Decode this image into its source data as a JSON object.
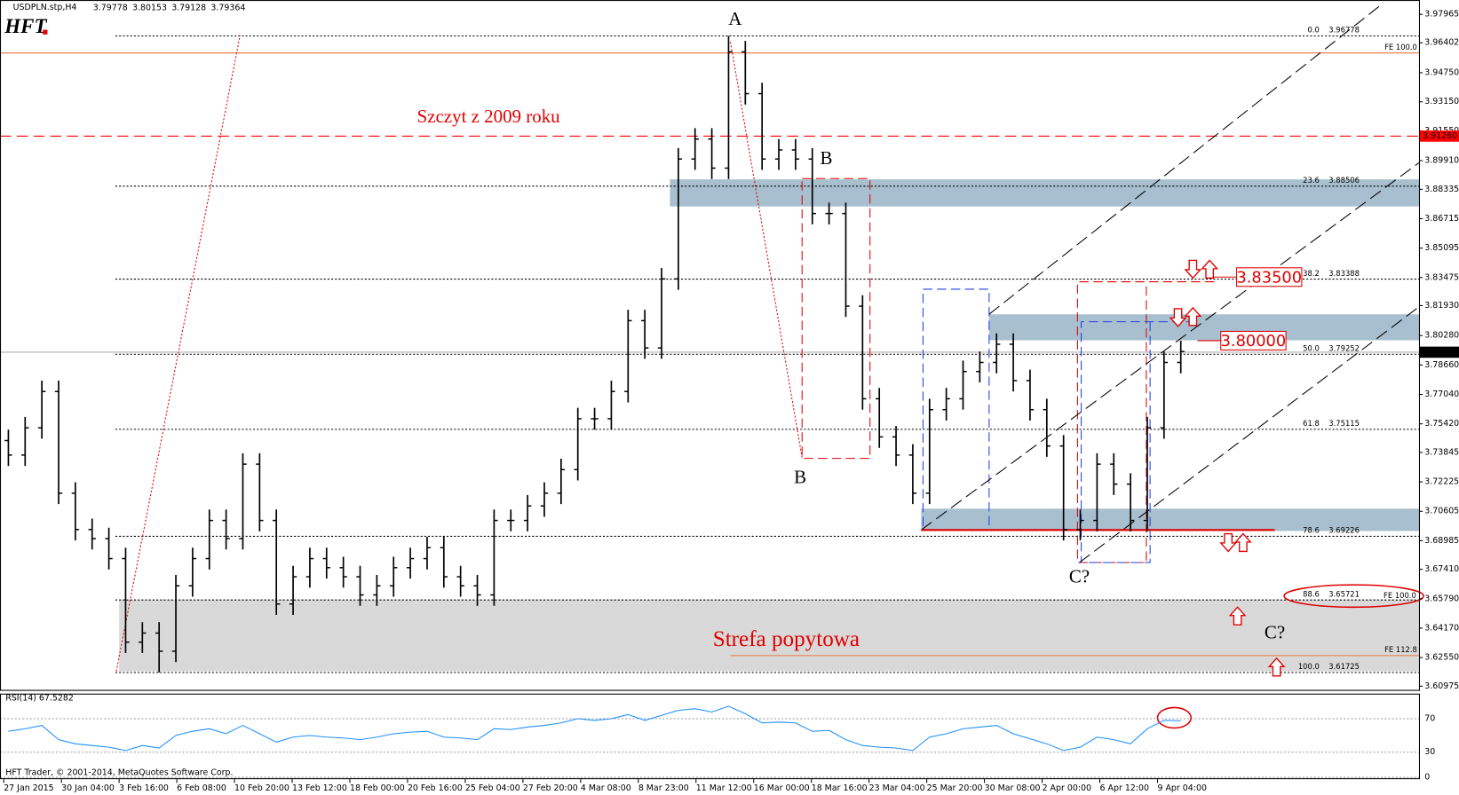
{
  "chart_data": [
    {
      "type": "ohlc",
      "title": "USDPLN.stp,H4",
      "quote": [
        3.79778,
        3.80153,
        3.79128,
        3.79364
      ],
      "logo": "HFT",
      "footer": "HFT Trader, © 2001-2014, MetaQuotes Software Corp.",
      "color": "#000000",
      "ylim": [
        3.6077,
        3.986
      ],
      "yticks": [
        3.97965,
        3.96402,
        {
          "value": 3.9475,
          "label": "3.94750"
        },
        {
          "value": 3.9315,
          "label": "3.93150"
        },
        {
          "value": 3.9155,
          "label": "3.91550"
        },
        {
          "value": 3.8991,
          "label": "3.89910"
        },
        3.88335,
        3.86715,
        3.85095,
        3.83475,
        {
          "value": 3.8193,
          "label": "3.81930"
        },
        {
          "value": 3.8028,
          "label": "3.80280"
        },
        {
          "value": 3.7866,
          "label": "3.78660"
        },
        {
          "value": 3.7704,
          "label": "3.77040"
        },
        {
          "value": 3.7542,
          "label": "3.75420"
        },
        3.73845,
        3.72225,
        3.70605,
        3.68985,
        {
          "value": 3.6741,
          "label": "3.67410"
        },
        {
          "value": 3.6579,
          "label": "3.65790"
        },
        {
          "value": 3.6417,
          "label": "3.64170"
        },
        {
          "value": 3.6255,
          "label": "3.62550"
        },
        3.60975
      ],
      "x_tick_labels": [
        "27 Jan 2015",
        "30 Jan 04:00",
        "3 Feb 16:00",
        "6 Feb 08:00",
        "10 Feb 20:00",
        "13 Feb 12:00",
        "18 Feb 00:00",
        "20 Feb 16:00",
        "25 Feb 04:00",
        "27 Feb 20:00",
        "4 Mar 08:00",
        "8 Mar 23:00",
        "11 Mar 12:00",
        "16 Mar 00:00",
        "18 Mar 16:00",
        "23 Mar 04:00",
        "25 Mar 20:00",
        "30 Mar 08:00",
        "2 Apr 00:00",
        "6 Apr 12:00",
        "9 Apr 04:00"
      ],
      "open": [
        3.745,
        3.737,
        3.752,
        3.772,
        3.716,
        3.696,
        3.691,
        3.68,
        3.634,
        3.639,
        3.629,
        3.665,
        3.68,
        3.701,
        3.691,
        3.732,
        3.701,
        3.655,
        3.67,
        3.68,
        3.675,
        3.67,
        3.66,
        3.665,
        3.675,
        3.68,
        3.686,
        3.67,
        3.665,
        3.66,
        3.701,
        3.701,
        3.709,
        3.716,
        3.729,
        3.757,
        3.757,
        3.772,
        3.811,
        3.796,
        3.834,
        3.9,
        3.911,
        3.895,
        3.959,
        3.936,
        3.9,
        3.905,
        3.9,
        3.87,
        3.87,
        3.819,
        3.768,
        3.747,
        3.737,
        3.716,
        3.762,
        3.768,
        3.783,
        3.788,
        3.798,
        3.778,
        3.762,
        3.742,
        3.696,
        3.701,
        3.732,
        3.721,
        3.701,
        3.752,
        3.788
      ],
      "high": [
        3.751,
        3.758,
        3.778,
        3.778,
        3.722,
        3.702,
        3.697,
        3.686,
        3.645,
        3.645,
        3.671,
        3.686,
        3.707,
        3.707,
        3.738,
        3.738,
        3.707,
        3.676,
        3.686,
        3.686,
        3.681,
        3.676,
        3.671,
        3.681,
        3.686,
        3.692,
        3.692,
        3.676,
        3.671,
        3.707,
        3.707,
        3.715,
        3.722,
        3.735,
        3.763,
        3.763,
        3.778,
        3.817,
        3.817,
        3.84,
        3.906,
        3.917,
        3.917,
        3.9678,
        3.965,
        3.942,
        3.911,
        3.911,
        3.906,
        3.876,
        3.876,
        3.825,
        3.774,
        3.753,
        3.743,
        3.768,
        3.774,
        3.789,
        3.794,
        3.804,
        3.804,
        3.784,
        3.768,
        3.748,
        3.707,
        3.738,
        3.738,
        3.727,
        3.758,
        3.794,
        3.8
      ],
      "low": [
        3.731,
        3.731,
        3.746,
        3.71,
        3.69,
        3.685,
        3.674,
        3.628,
        3.628,
        3.6173,
        3.623,
        3.659,
        3.674,
        3.685,
        3.685,
        3.695,
        3.649,
        3.649,
        3.664,
        3.669,
        3.664,
        3.654,
        3.654,
        3.659,
        3.669,
        3.674,
        3.664,
        3.659,
        3.654,
        3.654,
        3.695,
        3.695,
        3.703,
        3.71,
        3.723,
        3.751,
        3.751,
        3.766,
        3.79,
        3.79,
        3.828,
        3.894,
        3.889,
        3.889,
        3.93,
        3.894,
        3.894,
        3.894,
        3.864,
        3.864,
        3.813,
        3.762,
        3.741,
        3.731,
        3.71,
        3.71,
        3.756,
        3.762,
        3.777,
        3.782,
        3.772,
        3.756,
        3.736,
        3.69,
        3.69,
        3.695,
        3.715,
        3.695,
        3.695,
        3.746,
        3.782
      ],
      "close": [
        3.737,
        3.752,
        3.772,
        3.716,
        3.696,
        3.691,
        3.68,
        3.634,
        3.639,
        3.629,
        3.665,
        3.68,
        3.701,
        3.691,
        3.732,
        3.701,
        3.655,
        3.67,
        3.68,
        3.675,
        3.67,
        3.66,
        3.665,
        3.675,
        3.68,
        3.686,
        3.67,
        3.665,
        3.66,
        3.701,
        3.701,
        3.709,
        3.716,
        3.729,
        3.757,
        3.757,
        3.772,
        3.811,
        3.796,
        3.834,
        3.9,
        3.911,
        3.895,
        3.959,
        3.936,
        3.9,
        3.905,
        3.9,
        3.87,
        3.87,
        3.819,
        3.768,
        3.747,
        3.737,
        3.716,
        3.762,
        3.768,
        3.783,
        3.788,
        3.798,
        3.778,
        3.762,
        3.742,
        3.696,
        3.701,
        3.732,
        3.721,
        3.701,
        3.752,
        3.788,
        3.794
      ],
      "fib_levels": [
        {
          "level": "0.0",
          "value": 3.96778
        },
        {
          "level": "23.6",
          "value": 3.88506
        },
        {
          "level": "38.2",
          "value": 3.83388
        },
        {
          "level": "50.0",
          "value": 3.79252
        },
        {
          "level": "61.8",
          "value": 3.75115
        },
        {
          "level": "78.6",
          "value": 3.69226
        },
        {
          "level": "88.6",
          "value": 3.65721
        },
        {
          "level": "100.0",
          "value": 3.61725
        }
      ],
      "fe_lines": [
        {
          "label": "FE 100.0",
          "value": 3.9584,
          "color": "#e8773a"
        },
        {
          "label": "FE 112.8",
          "value": 3.6266,
          "color": "#e8773a"
        }
      ],
      "zones": [
        {
          "low": 3.8739,
          "high": 3.8888,
          "color": "#a8bfcf"
        },
        {
          "low": 3.8002,
          "high": 3.8145,
          "color": "#a8bfcf"
        },
        {
          "low": 3.6952,
          "high": 3.7075,
          "color": "#a8bfcf"
        },
        {
          "low": 3.6179,
          "high": 3.6574,
          "color": "#d9d9d9"
        }
      ],
      "resistance": {
        "value": 3.9126,
        "label": "3.91260",
        "color": "#ff0000"
      },
      "last_price": {
        "value": 3.79364
      },
      "targets": [
        {
          "value": 3.835,
          "label": "3.83500"
        },
        {
          "value": 3.8,
          "label": "3.80000"
        }
      ],
      "annotations": [
        "A",
        "B",
        "B",
        "C?",
        "C?",
        "Szczyt z 2009 roku",
        "Strefa popytowa",
        "FE 100.0"
      ]
    },
    {
      "type": "line",
      "title": "RSI(14) 67.5282",
      "color": "#1e90ff",
      "ylim": [
        0,
        100
      ],
      "yticks": [
        70,
        30,
        0
      ],
      "values": [
        55,
        58,
        62,
        45,
        40,
        38,
        36,
        32,
        38,
        35,
        50,
        55,
        58,
        52,
        62,
        52,
        42,
        48,
        50,
        48,
        47,
        45,
        48,
        52,
        54,
        55,
        48,
        47,
        45,
        58,
        57,
        60,
        62,
        65,
        70,
        68,
        70,
        75,
        68,
        74,
        80,
        82,
        78,
        85,
        76,
        65,
        66,
        65,
        55,
        56,
        45,
        38,
        36,
        35,
        32,
        48,
        52,
        58,
        60,
        62,
        52,
        46,
        40,
        32,
        36,
        48,
        45,
        40,
        58,
        68,
        67.5
      ]
    }
  ]
}
